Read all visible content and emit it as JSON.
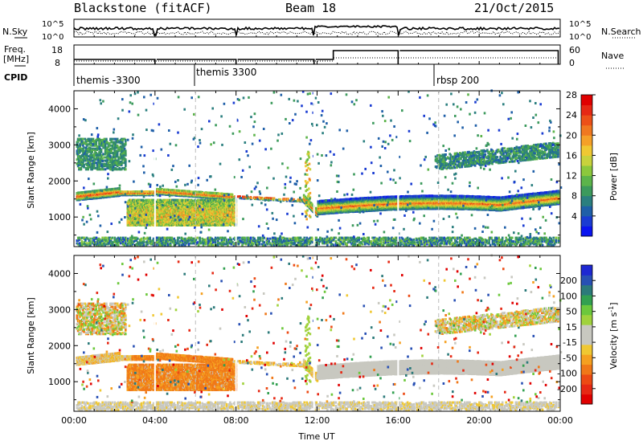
{
  "header": {
    "station": "Blackstone (fitACF)",
    "beam": "Beam 18",
    "date": "21/Oct/2015"
  },
  "noise_panel": {
    "left_label": "N.Sky",
    "right_label": "N.Search",
    "left_ticks": [
      "10^5",
      "10^0"
    ],
    "right_ticks": [
      "10^5",
      "10^0"
    ]
  },
  "freq_panel": {
    "left_label_top": "Freq.",
    "left_label_bottom": "[MHz]",
    "right_label": "Nave",
    "left_ticks": [
      "18",
      "8"
    ],
    "right_ticks": [
      "60",
      "0"
    ]
  },
  "cpid_panel": {
    "label": "CPID",
    "entries": [
      {
        "text": "themis -3300",
        "start_hour": 0.0
      },
      {
        "text": "themis 3300",
        "start_hour": 6.0
      },
      {
        "text": "rbsp 200",
        "start_hour": 18.0
      }
    ]
  },
  "chart_data": [
    {
      "type": "heatmap",
      "name": "power",
      "ylabel": "Slant Range [km]",
      "xlabel": "",
      "xlim": [
        0,
        24
      ],
      "ylim": [
        180,
        4500
      ],
      "yticks": [
        "1000",
        "2000",
        "3000",
        "4000"
      ],
      "ytick_values": [
        1000,
        2000,
        3000,
        4000
      ],
      "colorbar": {
        "label": "Power [dB]",
        "ticks": [
          "4",
          "8",
          "12",
          "16",
          "20",
          "24",
          "28"
        ],
        "tick_values": [
          4,
          8,
          12,
          16,
          20,
          24,
          28
        ],
        "range": [
          0,
          30
        ],
        "colors": [
          "#0a14f0",
          "#1a3cd2",
          "#1f5fa8",
          "#2b7f7f",
          "#3c9a5c",
          "#5cb44a",
          "#8cc83c",
          "#c8d23c",
          "#f0c832",
          "#f5a028",
          "#f07820",
          "#ec5018",
          "#e62814",
          "#e00000"
        ]
      }
    },
    {
      "type": "heatmap",
      "name": "velocity",
      "ylabel": "Slant Range [km]",
      "xlabel": "Time UT",
      "xlim": [
        0,
        24
      ],
      "ylim": [
        180,
        4500
      ],
      "xticks": [
        "00:00",
        "04:00",
        "08:00",
        "12:00",
        "16:00",
        "20:00",
        "00:00"
      ],
      "xtick_values": [
        0,
        4,
        8,
        12,
        16,
        20,
        24
      ],
      "yticks": [
        "1000",
        "2000",
        "3000",
        "4000"
      ],
      "ytick_values": [
        1000,
        2000,
        3000,
        4000
      ],
      "colorbar": {
        "label": "Velocity [m s",
        "label_sup": "-1",
        "label_end": "]",
        "ticks": [
          "200",
          "100",
          "50",
          "15",
          "-15",
          "-50",
          "-100",
          "-200"
        ],
        "colors": [
          "#1e28d2",
          "#2850b4",
          "#2c7a7a",
          "#32a050",
          "#6cc83c",
          "#a0d23c",
          "#c8c8c0",
          "#c8c8c0",
          "#f0c832",
          "#f5a020",
          "#f07818",
          "#ec4a14",
          "#e62814",
          "#e00000"
        ]
      }
    }
  ]
}
